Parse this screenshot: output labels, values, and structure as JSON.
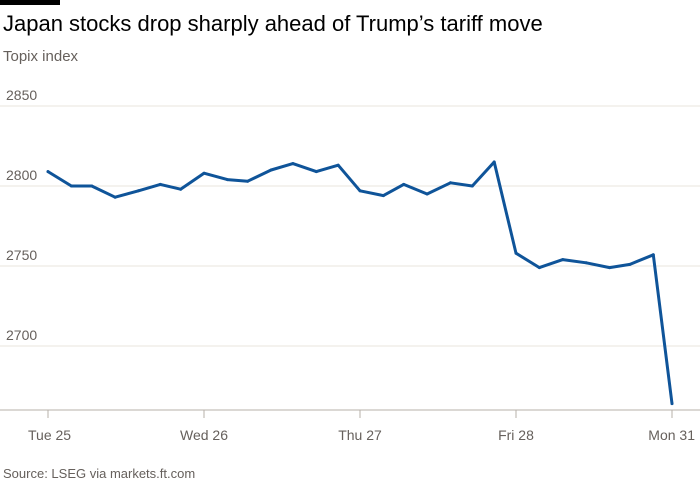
{
  "title": "Japan stocks drop sharply ahead of Trump’s tariff move",
  "subtitle": "Topix index",
  "source": "Source: LSEG via markets.ft.com",
  "colors": {
    "line": "#0f5499",
    "grid": "#e9e4de",
    "axis": "#b7b0aa",
    "text": "#66605c"
  },
  "chart_data": {
    "type": "line",
    "title": "Japan stocks drop sharply ahead of Trump’s tariff move",
    "subtitle": "Topix index",
    "xlabel": "",
    "ylabel": "",
    "x_ticks": [
      "Tue 25",
      "Wed 26",
      "Thu 27",
      "Fri 28",
      "Mon 31"
    ],
    "ylim": [
      2660,
      2860
    ],
    "y_ticks": [
      2700,
      2750,
      2800,
      2850
    ],
    "grid": true,
    "legend": "none",
    "series": [
      {
        "color": "#0f5499",
        "points": [
          {
            "x": 0.0,
            "y": 2809
          },
          {
            "x": 0.15,
            "y": 2800
          },
          {
            "x": 0.28,
            "y": 2800
          },
          {
            "x": 0.43,
            "y": 2793
          },
          {
            "x": 0.58,
            "y": 2797
          },
          {
            "x": 0.72,
            "y": 2801
          },
          {
            "x": 0.85,
            "y": 2798
          },
          {
            "x": 1.0,
            "y": 2808
          },
          {
            "x": 1.15,
            "y": 2804
          },
          {
            "x": 1.28,
            "y": 2803
          },
          {
            "x": 1.43,
            "y": 2810
          },
          {
            "x": 1.57,
            "y": 2814
          },
          {
            "x": 1.72,
            "y": 2809
          },
          {
            "x": 1.86,
            "y": 2813
          },
          {
            "x": 2.0,
            "y": 2797
          },
          {
            "x": 2.15,
            "y": 2794
          },
          {
            "x": 2.28,
            "y": 2801
          },
          {
            "x": 2.43,
            "y": 2795
          },
          {
            "x": 2.58,
            "y": 2802
          },
          {
            "x": 2.72,
            "y": 2800
          },
          {
            "x": 2.86,
            "y": 2815
          },
          {
            "x": 3.0,
            "y": 2758
          },
          {
            "x": 3.15,
            "y": 2749
          },
          {
            "x": 3.3,
            "y": 2754
          },
          {
            "x": 3.45,
            "y": 2752
          },
          {
            "x": 3.6,
            "y": 2749
          },
          {
            "x": 3.73,
            "y": 2751
          },
          {
            "x": 3.88,
            "y": 2757
          },
          {
            "x": 4.0,
            "y": 2664
          }
        ]
      }
    ]
  }
}
